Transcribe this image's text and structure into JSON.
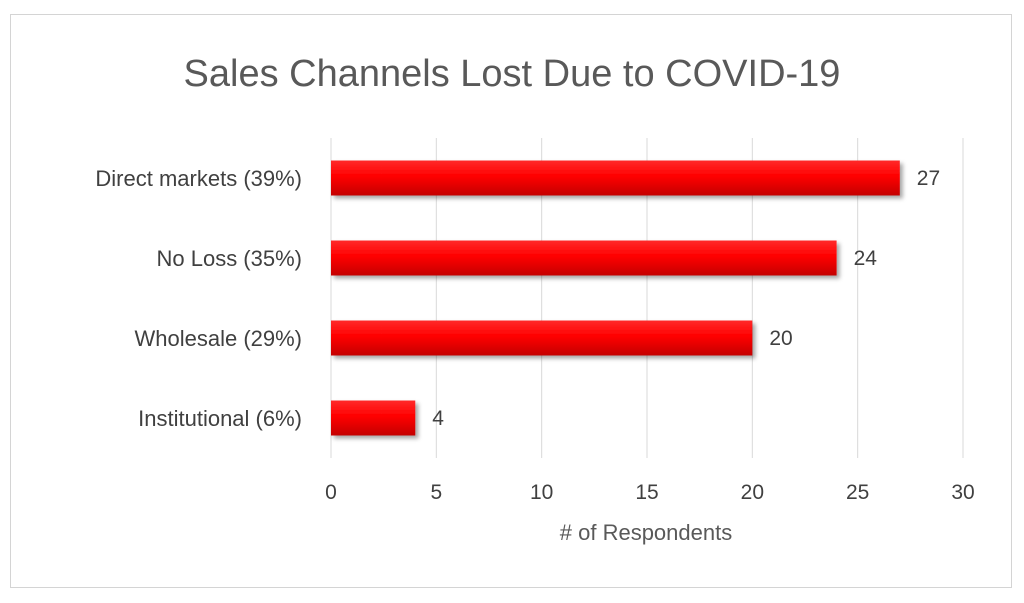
{
  "chart_data": {
    "type": "bar",
    "orientation": "horizontal",
    "title": "Sales Channels Lost Due to COVID-19",
    "xlabel": "# of Respondents",
    "ylabel": "",
    "categories": [
      "Direct markets (39%)",
      "No Loss (35%)",
      "Wholesale (29%)",
      "Institutional  (6%)"
    ],
    "values": [
      27,
      24,
      20,
      4
    ],
    "xlim": [
      0,
      30
    ],
    "xticks": [
      "0",
      "5",
      "10",
      "15",
      "20",
      "25",
      "30"
    ],
    "grid": "vertical",
    "data_labels": true,
    "legend": "none",
    "colors": {
      "bar": "#ff0000",
      "bar_dark": "#c00000",
      "grid": "#d9d9d9",
      "text": "#404040",
      "title": "#595959"
    }
  }
}
